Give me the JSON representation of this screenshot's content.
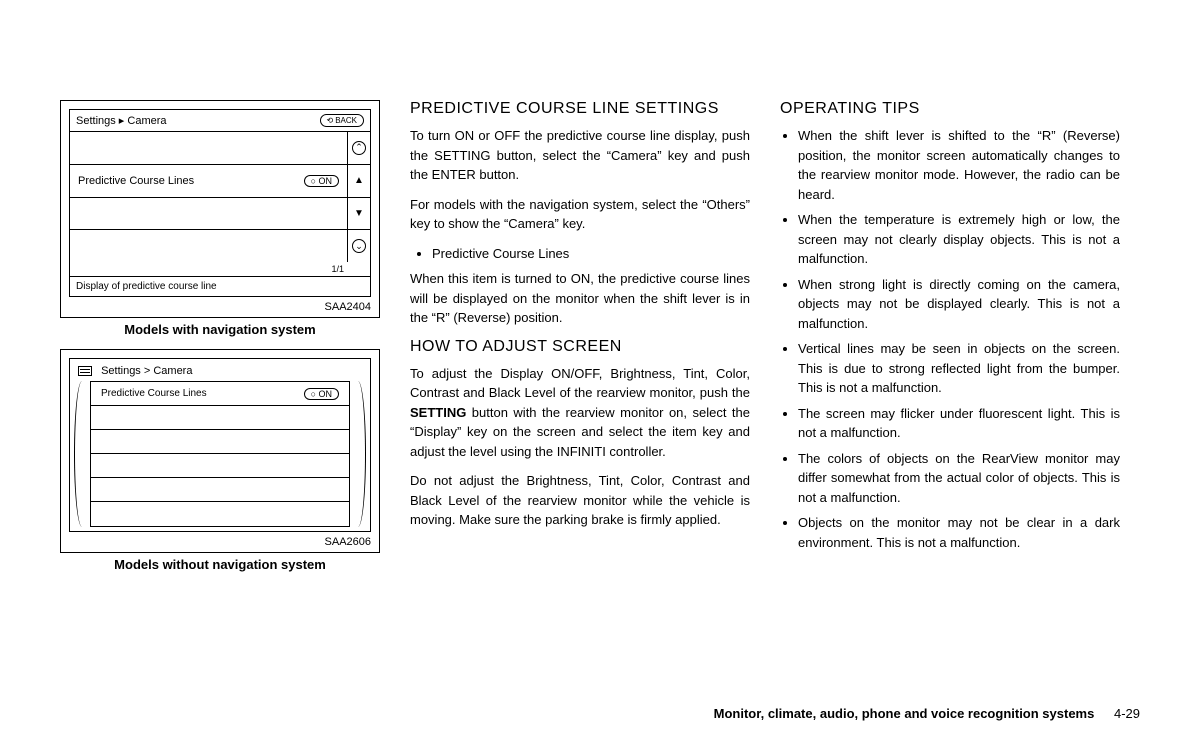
{
  "figure1": {
    "breadcrumb": "Settings ▸ Camera",
    "back_label": "BACK",
    "row_label": "Predictive Course Lines",
    "on_label": "ON",
    "page_indicator": "1/1",
    "footer_text": "Display of predictive course line",
    "code": "SAA2404",
    "caption": "Models with navigation system",
    "side_up": "▲",
    "side_down": "▼",
    "side_mid_up": "⌃",
    "side_mid_down": "⌄"
  },
  "figure2": {
    "breadcrumb": "Settings > Camera",
    "row_label": "Predictive Course Lines",
    "on_label": "ON",
    "code": "SAA2606",
    "caption": "Models without navigation system"
  },
  "center": {
    "h1": "PREDICTIVE COURSE LINE SETTINGS",
    "p1": "To turn ON or OFF the predictive course line display, push the SETTING button, select the “Camera” key and push the ENTER button.",
    "p2": "For models with the navigation system, select the “Others” key to show the “Camera” key.",
    "bullet1": "Predictive Course Lines",
    "p3": "When this item is turned to ON, the predictive course lines will be displayed on the monitor when the shift lever is in the “R” (Reverse) position.",
    "h2": "HOW TO ADJUST SCREEN",
    "p4_a": "To adjust the Display ON/OFF, Brightness, Tint, Color, Contrast and Black Level of the rearview monitor, push the ",
    "p4_bold": "SETTING",
    "p4_b": " button with the rearview monitor on, select the “Display” key on the screen and select the item key and adjust the level using the INFINITI controller.",
    "p5": "Do not adjust the Brightness, Tint, Color, Contrast and Black Level of the rearview monitor while the vehicle is moving. Make sure the parking brake is firmly applied."
  },
  "right": {
    "h1": "OPERATING TIPS",
    "bullets": [
      "When the shift lever is shifted to the “R” (Reverse) position, the monitor screen automatically changes to the rearview monitor mode. However, the radio can be heard.",
      "When the temperature is extremely high or low, the screen may not clearly display objects. This is not a malfunction.",
      "When strong light is directly coming on the camera, objects may not be displayed clearly. This is not a malfunction.",
      "Vertical lines may be seen in objects on the screen. This is due to strong reflected light from the bumper. This is not a malfunction.",
      "The screen may flicker under fluorescent light. This is not a malfunction.",
      "The colors of objects on the RearView monitor may differ somewhat from the actual color of objects. This is not a malfunction.",
      "Objects on the monitor may not be clear in a dark environment. This is not a malfunction."
    ]
  },
  "footer": {
    "chapter": "Monitor, climate, audio, phone and voice recognition systems",
    "page": "4-29"
  }
}
